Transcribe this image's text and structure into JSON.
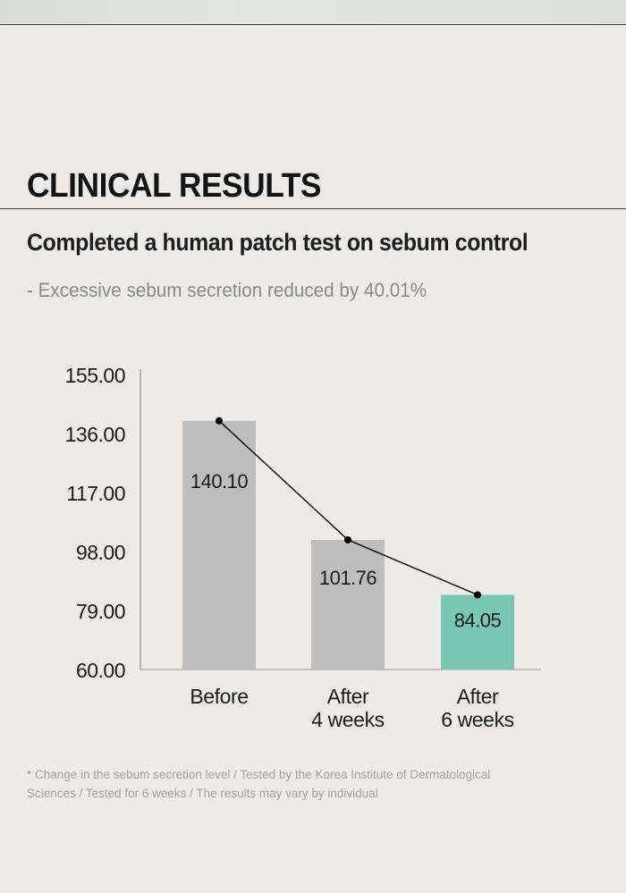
{
  "header": {
    "title": "CLINICAL RESULTS",
    "subtitle": "Completed a human patch test on sebum control",
    "tagline": "- Excessive sebum secretion reduced by 40.01%"
  },
  "footnote": "* Change in the sebum secretion level / Tested by the Korea Institute of Dermatological Sciences / Tested for 6 weeks / The results may vary by individual",
  "chart_data": {
    "type": "bar",
    "categories": [
      [
        "Before"
      ],
      [
        "After",
        "4 weeks"
      ],
      [
        "After",
        "6 weeks"
      ]
    ],
    "values": [
      140.1,
      101.76,
      84.05
    ],
    "value_labels": [
      "140.10",
      "101.76",
      "84.05"
    ],
    "y_ticks": [
      "60.00",
      "79.00",
      "98.00",
      "117.00",
      "136.00",
      "155.00"
    ],
    "ylim": [
      60,
      155
    ],
    "bar_colors": [
      "#bdbdbd",
      "#bdbdbd",
      "#79c6b2"
    ],
    "line_overlay": true,
    "line_color": "#000000",
    "grid": false,
    "title": "",
    "xlabel": "",
    "ylabel": ""
  }
}
